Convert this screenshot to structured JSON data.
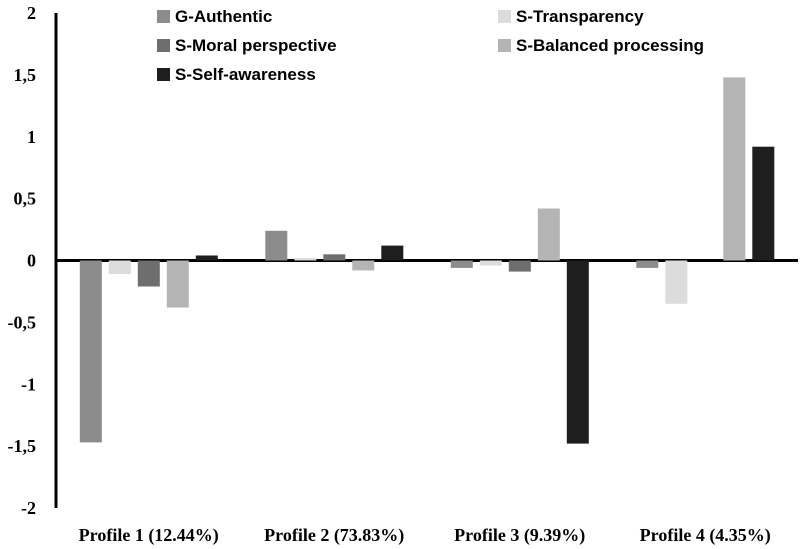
{
  "chart_data": {
    "type": "bar",
    "categories": [
      "Profile 1 (12.44%)",
      "Profile 2 (73.83%)",
      "Profile 3 (9.39%)",
      "Profile 4 (4.35%)"
    ],
    "ylim": [
      -2,
      2
    ],
    "yticks": [
      "2",
      "1,5",
      "1",
      "0,5",
      "0",
      "-0,5",
      "-1",
      "-1,5",
      "-2"
    ],
    "ytick_values": [
      2,
      1.5,
      1,
      0.5,
      0,
      -0.5,
      -1,
      -1.5,
      -2
    ],
    "legend_position": "top",
    "grid": false,
    "series": [
      {
        "name": "G-Authentic",
        "color": "#8c8c8c",
        "values": [
          -1.47,
          0.24,
          -0.06,
          -0.06
        ]
      },
      {
        "name": "S-Transparency",
        "color": "#dcdcdc",
        "values": [
          -0.11,
          0.02,
          -0.04,
          -0.35
        ]
      },
      {
        "name": "S-Moral perspective",
        "color": "#6e6e6e",
        "values": [
          -0.21,
          0.05,
          -0.09,
          0.0
        ]
      },
      {
        "name": "S-Balanced processing",
        "color": "#b4b4b4",
        "values": [
          -0.38,
          -0.08,
          0.42,
          1.48
        ]
      },
      {
        "name": "S-Self-awareness",
        "color": "#1e1e1e",
        "values": [
          0.04,
          0.12,
          -1.48,
          0.92
        ]
      }
    ]
  }
}
